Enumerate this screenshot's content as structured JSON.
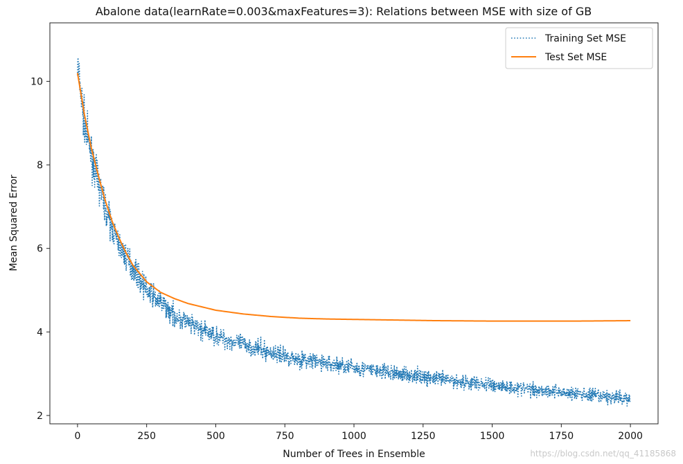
{
  "chart_data": {
    "type": "line",
    "title": "Abalone data(learnRate=0.003&maxFeatures=3): Relations between MSE with size of GB",
    "xlabel": "Number of Trees in Ensemble",
    "ylabel": "Mean Squared Error",
    "xlim": [
      -100,
      2100
    ],
    "ylim": [
      1.8,
      11.4
    ],
    "xticks": [
      0,
      250,
      500,
      750,
      1000,
      1250,
      1500,
      1750,
      2000
    ],
    "yticks": [
      2,
      4,
      6,
      8,
      10
    ],
    "grid": false,
    "legend": "top-right",
    "series": [
      {
        "name": "Training Set MSE",
        "style": "dotted",
        "color": "#1f77b4",
        "noisy": true,
        "x": [
          0,
          25,
          50,
          75,
          100,
          125,
          150,
          175,
          200,
          250,
          300,
          350,
          400,
          450,
          500,
          600,
          700,
          800,
          900,
          1000,
          1100,
          1200,
          1300,
          1400,
          1500,
          1600,
          1700,
          1800,
          1900,
          2000
        ],
        "values": [
          10.4,
          9.0,
          8.2,
          7.6,
          7.0,
          6.5,
          6.1,
          5.8,
          5.55,
          5.0,
          4.7,
          4.4,
          4.2,
          4.05,
          3.9,
          3.7,
          3.5,
          3.35,
          3.25,
          3.15,
          3.05,
          2.97,
          2.88,
          2.8,
          2.73,
          2.65,
          2.6,
          2.52,
          2.45,
          2.4
        ]
      },
      {
        "name": "Test Set MSE",
        "style": "solid",
        "color": "#ff7f0e",
        "noisy": false,
        "x": [
          0,
          25,
          50,
          75,
          100,
          125,
          150,
          175,
          200,
          250,
          300,
          350,
          400,
          450,
          500,
          600,
          700,
          800,
          900,
          1000,
          1100,
          1200,
          1300,
          1400,
          1500,
          1600,
          1700,
          1800,
          1900,
          2000
        ],
        "values": [
          10.2,
          9.2,
          8.4,
          7.75,
          7.15,
          6.65,
          6.25,
          5.9,
          5.6,
          5.2,
          4.95,
          4.8,
          4.68,
          4.6,
          4.52,
          4.43,
          4.37,
          4.33,
          4.31,
          4.3,
          4.29,
          4.28,
          4.27,
          4.265,
          4.26,
          4.26,
          4.26,
          4.26,
          4.265,
          4.27
        ]
      }
    ]
  },
  "watermark": "https://blog.csdn.net/qq_41185868"
}
